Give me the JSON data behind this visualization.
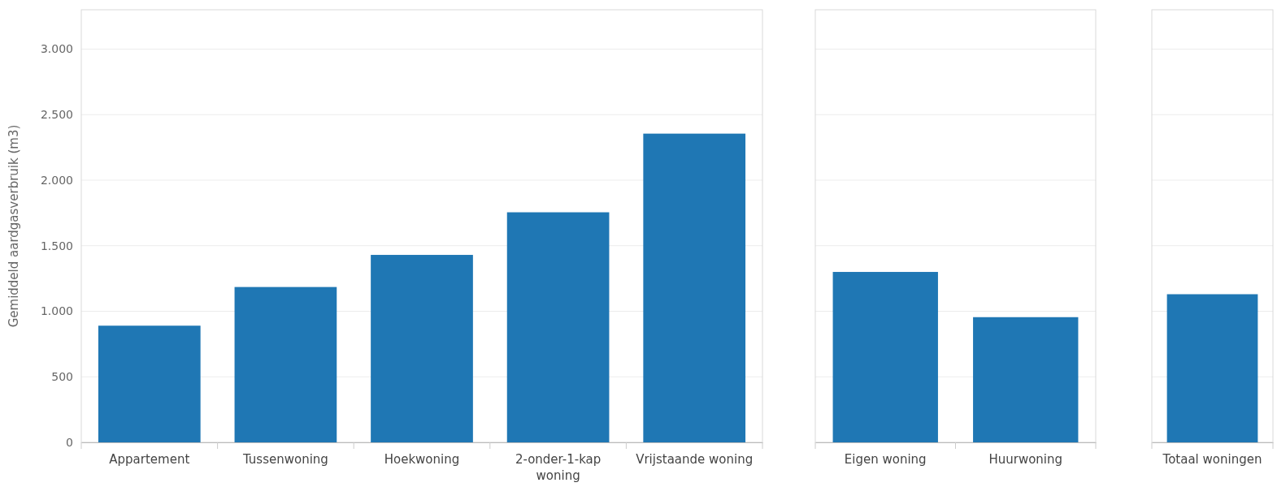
{
  "chart_data": [
    {
      "type": "bar",
      "ylabel": "Gemiddeld aardgasverbruik (m3)",
      "categories": [
        "Appartement",
        "Tussenwoning",
        "Hoekwoning",
        "2-onder-1-kap woning",
        "Vrijstaande woning"
      ],
      "values": [
        890,
        1185,
        1430,
        1755,
        2355
      ],
      "color": "#1f77b4",
      "ylim": [
        0,
        3300
      ],
      "yticks": [
        0,
        {
          "value": 500,
          "label": "500"
        },
        {
          "value": 1000,
          "label": "1.000"
        },
        {
          "value": 1500,
          "label": "1.500"
        },
        {
          "value": 2000,
          "label": "2.000"
        },
        {
          "value": 2500,
          "label": "2.500"
        },
        {
          "value": 3000,
          "label": "3.000"
        }
      ],
      "grid": "y"
    },
    {
      "type": "bar",
      "categories": [
        "Eigen woning",
        "Huurwoning"
      ],
      "values": [
        1300,
        955
      ],
      "color": "#1f77b4",
      "ylim": [
        0,
        3300
      ],
      "yticks": [
        {
          "value": 0,
          "label": null
        },
        {
          "value": 500,
          "label": null
        },
        {
          "value": 1000,
          "label": null
        },
        {
          "value": 1500,
          "label": null
        },
        {
          "value": 2000,
          "label": null
        },
        {
          "value": 2500,
          "label": null
        },
        {
          "value": 3000,
          "label": null
        }
      ],
      "grid": "y",
      "tick_labels": "x"
    },
    {
      "type": "bar",
      "categories": [
        "Totaal woningen"
      ],
      "values": [
        1130
      ],
      "color": "#1f77b4",
      "ylim": [
        0,
        3300
      ],
      "yticks": [
        {
          "value": 0,
          "label": null
        },
        {
          "value": 500,
          "label": null
        },
        {
          "value": 1000,
          "label": null
        },
        {
          "value": 1500,
          "label": null
        },
        {
          "value": 2000,
          "label": null
        },
        {
          "value": 2500,
          "label": null
        },
        {
          "value": 3000,
          "label": null
        }
      ],
      "grid": "y",
      "tick_labels": "x"
    }
  ]
}
